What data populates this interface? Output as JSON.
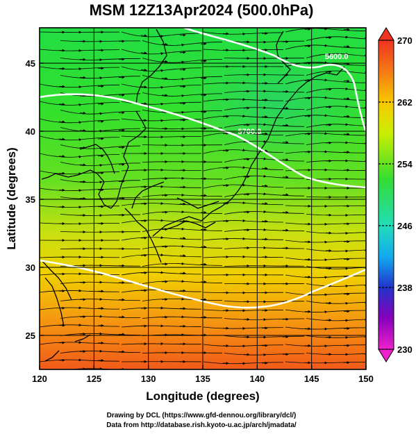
{
  "title": "MSM 12Z13Apr2024 (500.0hPa)",
  "xlabel": "Longitude (degrees)",
  "ylabel": "Latitude  (degrees)",
  "x_ticks": [
    120,
    125,
    130,
    135,
    140,
    145,
    150
  ],
  "y_ticks": [
    25,
    30,
    35,
    40,
    45
  ],
  "xlim": [
    120,
    150
  ],
  "ylim": [
    22.5,
    47.6
  ],
  "contours": [
    {
      "label": "5600.0",
      "lon": 147.3,
      "lat": 45.3
    },
    {
      "label": "5700.0",
      "lon": 139.3,
      "lat": 39.8
    }
  ],
  "colorbar": {
    "ticks": [
      270,
      262,
      254,
      246,
      238,
      230
    ],
    "min": 230,
    "max": 270
  },
  "footer": {
    "line1": "Drawing by DCL (https://www.gfd-dennou.org/library/dcl/)",
    "line2": "Data from http://database.rish.kyoto-u.ac.jp/arch/jmadata/"
  }
}
